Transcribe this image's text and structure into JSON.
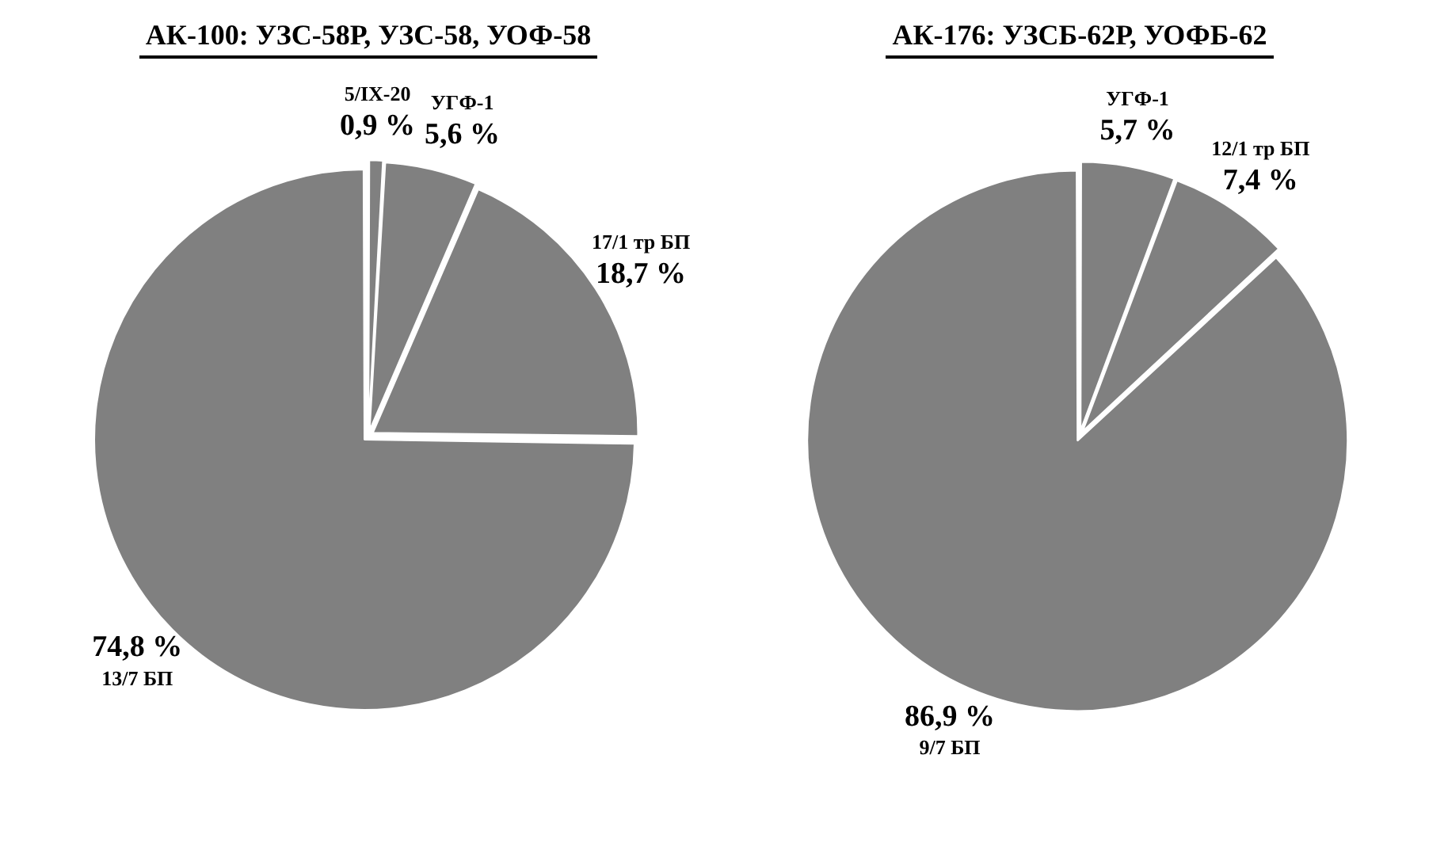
{
  "chart_data": [
    {
      "type": "pie",
      "title": "АК-100: УЗС-58Р, УЗС-58, УОФ-58",
      "categories": [
        "5/IX-20",
        "УГФ-1",
        "17/1 тр БП",
        "13/7 БП"
      ],
      "values": [
        0.9,
        5.6,
        18.7,
        74.8
      ],
      "colors": [
        "#808080",
        "#808080",
        "#808080",
        "#808080"
      ],
      "value_labels": [
        "0,9 %",
        "5,6 %",
        "18,7 %",
        "74,8 %"
      ],
      "legend": false
    },
    {
      "type": "pie",
      "title": "АК-176: УЗСБ-62Р, УОФБ-62",
      "categories": [
        "УГФ-1",
        "12/1 тр БП",
        "9/7 БП"
      ],
      "values": [
        5.7,
        7.4,
        86.9
      ],
      "colors": [
        "#808080",
        "#808080",
        "#808080"
      ],
      "value_labels": [
        "5,7 %",
        "7,4 %",
        "86,9 %"
      ],
      "legend": false
    }
  ]
}
